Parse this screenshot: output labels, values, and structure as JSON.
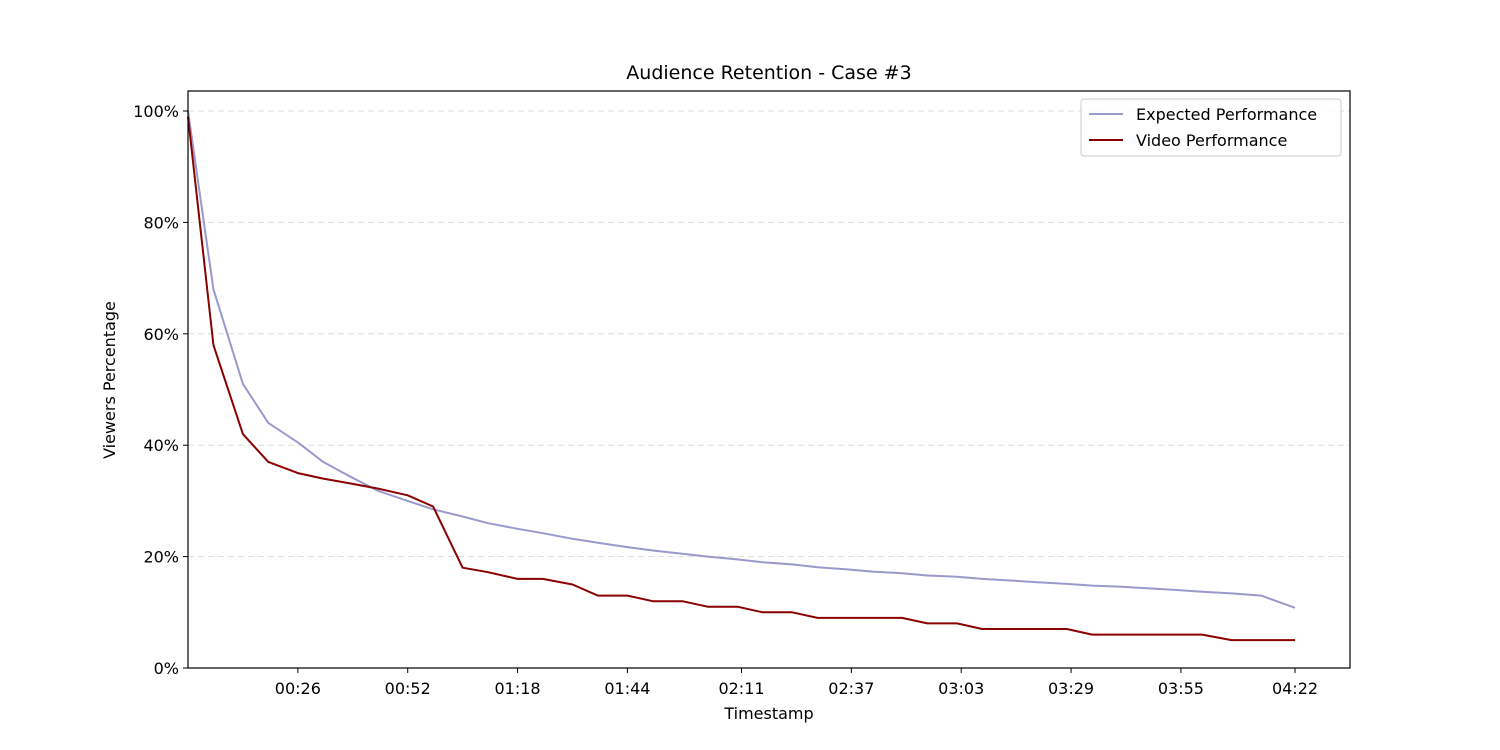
{
  "chart_data": {
    "type": "line",
    "title": "Audience Retention - Case #3",
    "xlabel": "Timestamp",
    "ylabel": "Viewers Percentage",
    "ylim": [
      0,
      100
    ],
    "xlim": [
      0,
      275
    ],
    "grid": "y-dashed",
    "legend_position": "top-right",
    "x_ticks": [
      {
        "value": 26,
        "label": "00:26"
      },
      {
        "value": 52,
        "label": "00:52"
      },
      {
        "value": 78,
        "label": "01:18"
      },
      {
        "value": 104,
        "label": "01:44"
      },
      {
        "value": 131,
        "label": "02:11"
      },
      {
        "value": 157,
        "label": "02:37"
      },
      {
        "value": 183,
        "label": "03:03"
      },
      {
        "value": 209,
        "label": "03:29"
      },
      {
        "value": 235,
        "label": "03:55"
      },
      {
        "value": 262,
        "label": "04:22"
      }
    ],
    "y_ticks": [
      {
        "value": 0,
        "label": "0%"
      },
      {
        "value": 20,
        "label": "20%"
      },
      {
        "value": 40,
        "label": "40%"
      },
      {
        "value": 60,
        "label": "60%"
      },
      {
        "value": 80,
        "label": "80%"
      },
      {
        "value": 100,
        "label": "100%"
      }
    ],
    "series": [
      {
        "name": "Expected Performance",
        "color": "#9999cc",
        "points": [
          [
            0,
            100
          ],
          [
            6,
            68
          ],
          [
            13,
            51
          ],
          [
            19,
            44
          ],
          [
            26,
            40.5
          ],
          [
            32,
            37
          ],
          [
            38,
            34.5
          ],
          [
            45,
            31.8
          ],
          [
            52,
            30
          ],
          [
            58,
            28.5
          ],
          [
            65,
            27.2
          ],
          [
            71,
            26
          ],
          [
            78,
            25
          ],
          [
            84,
            24.2
          ],
          [
            91,
            23.2
          ],
          [
            97,
            22.5
          ],
          [
            104,
            21.7
          ],
          [
            110,
            21.1
          ],
          [
            117,
            20.5
          ],
          [
            123,
            20
          ],
          [
            130,
            19.5
          ],
          [
            136,
            19
          ],
          [
            143,
            18.6
          ],
          [
            149,
            18.1
          ],
          [
            156,
            17.7
          ],
          [
            162,
            17.3
          ],
          [
            169,
            17
          ],
          [
            175,
            16.6
          ],
          [
            182,
            16.4
          ],
          [
            188,
            16
          ],
          [
            195,
            15.7
          ],
          [
            201,
            15.4
          ],
          [
            208,
            15.1
          ],
          [
            214,
            14.8
          ],
          [
            221,
            14.6
          ],
          [
            227,
            14.3
          ],
          [
            234,
            14
          ],
          [
            240,
            13.7
          ],
          [
            247,
            13.4
          ],
          [
            254,
            13
          ],
          [
            262,
            10.8
          ]
        ]
      },
      {
        "name": "Video Performance",
        "color": "#8b0000",
        "points": [
          [
            0,
            99
          ],
          [
            6,
            58
          ],
          [
            13,
            42
          ],
          [
            19,
            37
          ],
          [
            26,
            35
          ],
          [
            32,
            34
          ],
          [
            38,
            33.2
          ],
          [
            45,
            32.2
          ],
          [
            52,
            31
          ],
          [
            58,
            29
          ],
          [
            65,
            18
          ],
          [
            71,
            17.2
          ],
          [
            78,
            16
          ],
          [
            84,
            16
          ],
          [
            91,
            15
          ],
          [
            97,
            13
          ],
          [
            104,
            13
          ],
          [
            110,
            12
          ],
          [
            117,
            12
          ],
          [
            123,
            11
          ],
          [
            130,
            11
          ],
          [
            136,
            10
          ],
          [
            143,
            10
          ],
          [
            149,
            9
          ],
          [
            156,
            9
          ],
          [
            162,
            9
          ],
          [
            169,
            9
          ],
          [
            175,
            8
          ],
          [
            182,
            8
          ],
          [
            188,
            7
          ],
          [
            195,
            7
          ],
          [
            201,
            7
          ],
          [
            208,
            7
          ],
          [
            214,
            6
          ],
          [
            221,
            6
          ],
          [
            227,
            6
          ],
          [
            234,
            6
          ],
          [
            240,
            6
          ],
          [
            247,
            5
          ],
          [
            254,
            5
          ],
          [
            262,
            5
          ]
        ]
      }
    ]
  }
}
